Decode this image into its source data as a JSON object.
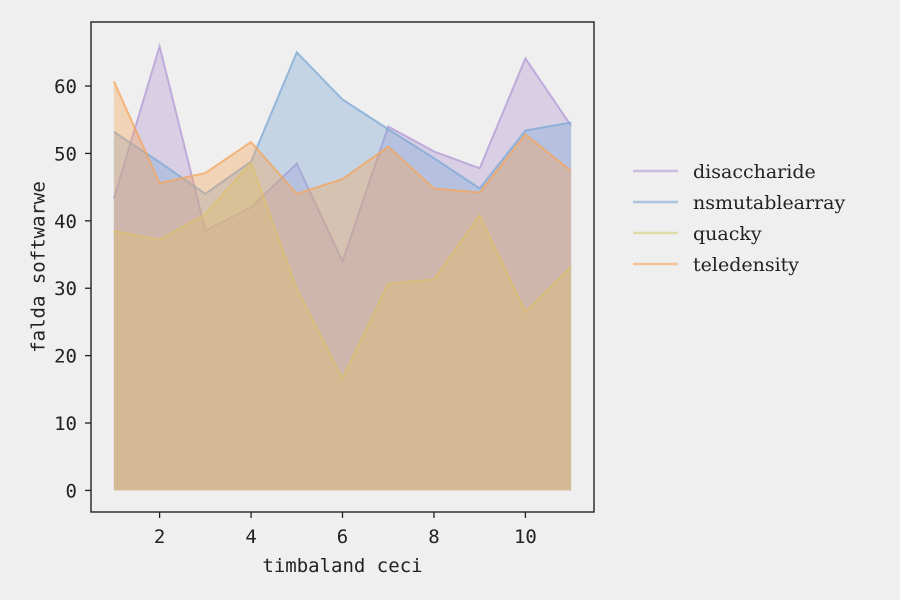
{
  "chart_data": {
    "type": "area",
    "title": "",
    "xlabel": "timbaland ceci",
    "ylabel": "falda softwarwe",
    "x": [
      1,
      2,
      3,
      4,
      5,
      6,
      7,
      8,
      9,
      10,
      11
    ],
    "xlim": [
      0.5,
      11.5
    ],
    "ylim": [
      -3.2,
      69.5
    ],
    "xticks": [
      2,
      4,
      6,
      8,
      10
    ],
    "yticks": [
      0,
      10,
      20,
      30,
      40,
      50,
      60
    ],
    "grid": false,
    "legend_position": "right",
    "series": [
      {
        "name": "disaccharide",
        "color": "#b39ad6",
        "values": [
          43.3,
          65.9,
          38.6,
          42.0,
          48.5,
          34.0,
          54.0,
          50.3,
          47.8,
          64.1,
          54.1
        ]
      },
      {
        "name": "nsmutablearray",
        "color": "#7ea8d4",
        "values": [
          53.2,
          48.7,
          44.0,
          48.8,
          65.0,
          58.0,
          53.6,
          49.3,
          44.8,
          53.4,
          54.6
        ]
      },
      {
        "name": "quacky",
        "color": "#cfcf7a",
        "values": [
          38.5,
          37.2,
          41.0,
          48.6,
          29.9,
          16.6,
          30.7,
          31.3,
          40.8,
          26.5,
          33.2
        ]
      },
      {
        "name": "teledensity",
        "color": "#f4a65c",
        "values": [
          60.7,
          45.6,
          47.1,
          51.7,
          44.0,
          46.2,
          51.0,
          44.8,
          44.2,
          52.8,
          47.4
        ]
      }
    ]
  }
}
